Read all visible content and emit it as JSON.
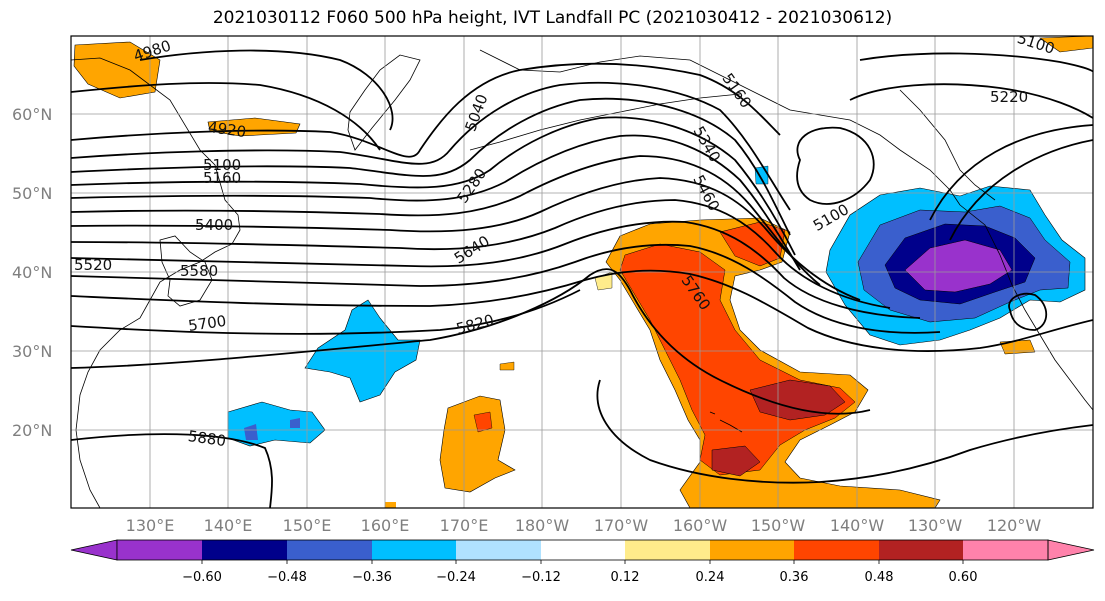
{
  "title": "2021030112 F060 500 hPa height, IVT Landfall PC (2021030412 - 2021030612)",
  "lat_labels": [
    "60°N",
    "50°N",
    "40°N",
    "30°N",
    "20°N"
  ],
  "lon_labels": [
    "130°E",
    "140°E",
    "150°E",
    "160°E",
    "170°E",
    "180°W",
    "170°W",
    "160°W",
    "150°W",
    "140°W",
    "130°W",
    "120°W"
  ],
  "contour_labels": [
    "4980",
    "4920",
    "5100",
    "5160",
    "5400",
    "5520",
    "5580",
    "5700",
    "5040",
    "5280",
    "5640",
    "5820",
    "5880",
    "5160",
    "5340",
    "5460",
    "5760",
    "5100",
    "5220",
    "5100"
  ],
  "colorbar": {
    "ticks": [
      "−0.60",
      "−0.48",
      "−0.36",
      "−0.24",
      "−0.12",
      "0.12",
      "0.24",
      "0.36",
      "0.48",
      "0.60"
    ],
    "colors": [
      "#9932cc",
      "#00008b",
      "#3a5fcd",
      "#00bfff",
      "#b0e2ff",
      "#ffffff",
      "#ffec8b",
      "#ffa500",
      "#ff4500",
      "#b22222",
      "#ff82ab"
    ]
  }
}
